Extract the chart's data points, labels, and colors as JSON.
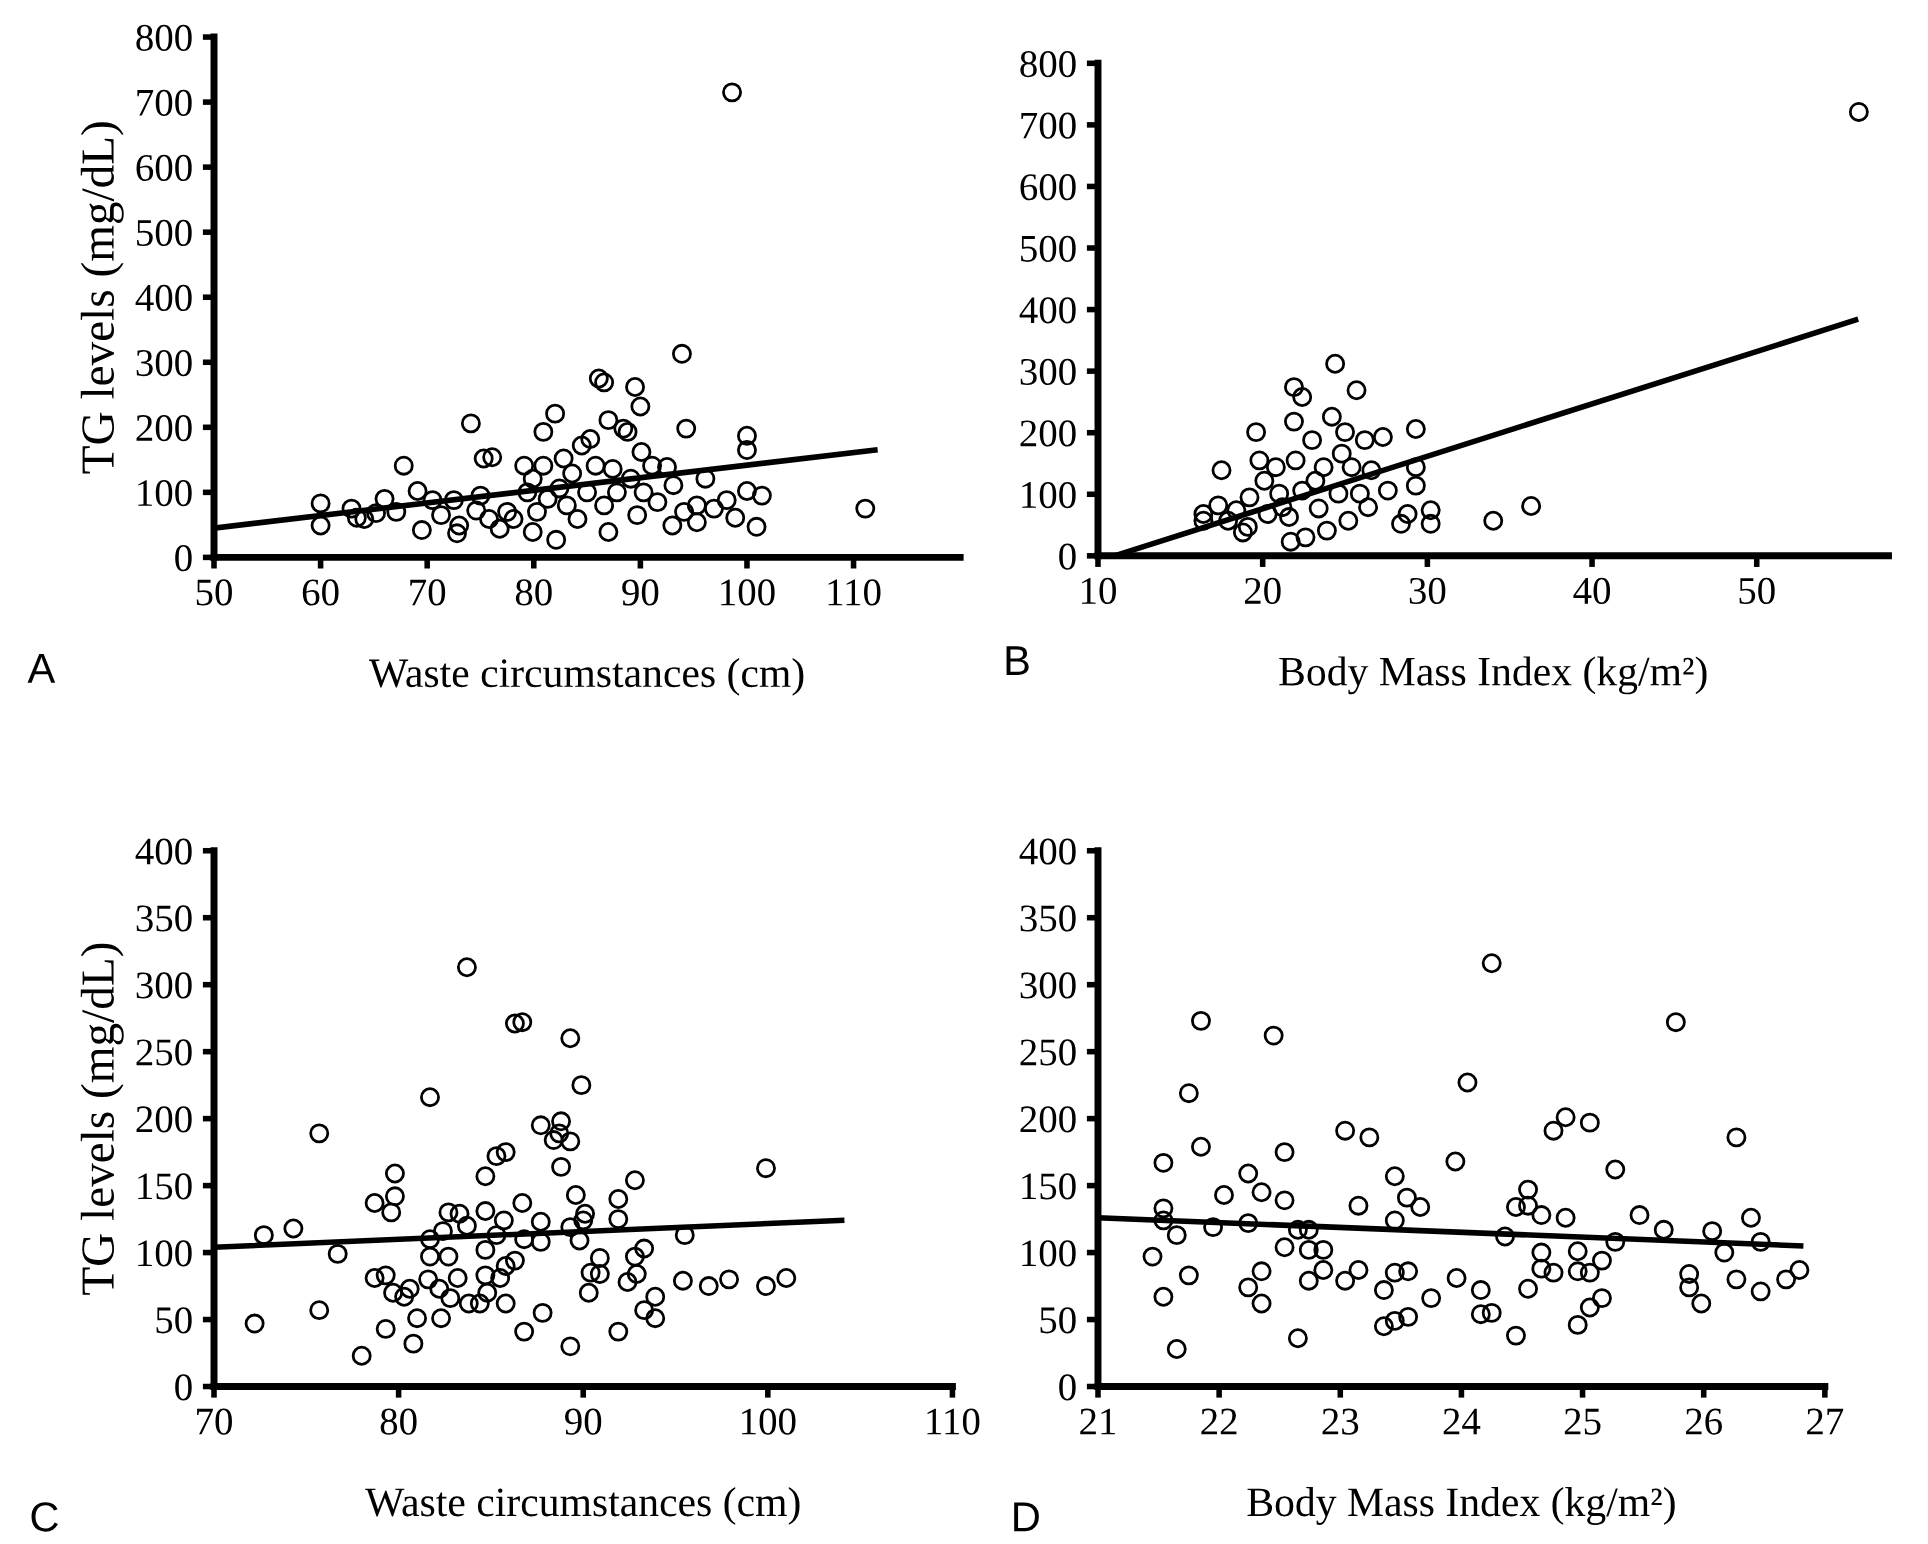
{
  "chart_data": [
    {
      "type": "scatter",
      "xlabel": "Waste circumstances (cm)",
      "ylabel": "TG levels (mg/dL)",
      "annotations": [
        "A"
      ],
      "xlim": [
        50,
        120
      ],
      "xticks": [
        50,
        60,
        70,
        80,
        90,
        100,
        110
      ],
      "ylim": [
        0,
        800
      ],
      "yticks": [
        0,
        100,
        200,
        300,
        400,
        500,
        600,
        700,
        800
      ],
      "series": [
        {
          "marker": "circle",
          "color": "#000000",
          "x": [
            60,
            60,
            62.9,
            63.4,
            64.1,
            66,
            65.2,
            67.1,
            67.8,
            69.1,
            69.5,
            70.5,
            71.3,
            72.8,
            73,
            72.5,
            74.1,
            74.6,
            75,
            75.3,
            76.1,
            75.8,
            76.8,
            77.5,
            78.1,
            79.1,
            79.4,
            79.9,
            79.9,
            80.3,
            80.9,
            80.9,
            81.3,
            82,
            82.1,
            82.4,
            82.8,
            83.1,
            83.6,
            84.1,
            84.5,
            85,
            85.3,
            85.8,
            86.1,
            86.6,
            86.6,
            87,
            87,
            87.4,
            87.8,
            88.4,
            88.8,
            89.1,
            89.5,
            89.7,
            90,
            90.1,
            90.3,
            91.1,
            91.6,
            92.5,
            93,
            93.1,
            93.9,
            94.3,
            94.1,
            95.3,
            95.3,
            96.1,
            96.9,
            98.1,
            98.6,
            98.9,
            100,
            100,
            100,
            100.9,
            101.4,
            111.1
          ],
          "values": [
            83,
            49,
            75,
            61,
            59,
            90,
            68,
            70,
            141,
            102,
            42,
            88,
            65,
            37,
            49,
            88,
            206,
            72,
            95,
            152,
            154,
            59,
            44,
            70,
            59,
            141,
            100,
            121,
            39,
            70,
            193,
            141,
            90,
            221,
            27,
            106,
            152,
            80,
            129,
            59,
            172,
            100,
            182,
            141,
            275,
            269,
            80,
            211,
            39,
            136,
            100,
            198,
            193,
            121,
            262,
            65,
            232,
            162,
            100,
            141,
            85,
            139,
            49,
            111,
            313,
            198,
            70,
            54,
            80,
            121,
            75,
            88,
            715,
            61,
            102,
            187,
            165,
            47,
            95,
            75
          ]
        },
        {
          "type": "line",
          "marker": "none",
          "color": "#000000",
          "x": [
            50,
            112
          ],
          "values": [
            45,
            165
          ]
        }
      ]
    },
    {
      "type": "scatter",
      "xlabel": "Body Mass Index (kg/m²)",
      "annotations": [
        "B"
      ],
      "xlim": [
        10,
        58
      ],
      "xticks": [
        10,
        20,
        30,
        40,
        50
      ],
      "ylim": [
        0,
        800
      ],
      "yticks": [
        0,
        100,
        200,
        300,
        400,
        500,
        600,
        700,
        800
      ],
      "series": [
        {
          "marker": "circle",
          "color": "#000000",
          "x": [
            16.4,
            16.4,
            17.3,
            17.5,
            17.9,
            18.4,
            18.8,
            19.1,
            19.2,
            19.6,
            19.8,
            20.1,
            20.3,
            20.8,
            21,
            21.2,
            21.6,
            21.7,
            21.9,
            21.9,
            22,
            22.4,
            22.4,
            22.6,
            23,
            23.2,
            23.4,
            23.7,
            23.9,
            24.2,
            24.4,
            24.6,
            24.8,
            25,
            25.2,
            25.4,
            25.7,
            25.9,
            26.2,
            26.4,
            26.6,
            27.3,
            27.6,
            28.4,
            28.8,
            29.3,
            29.3,
            29.3,
            30.2,
            30.2,
            34,
            36.3,
            56.2
          ],
          "values": [
            68,
            57,
            82,
            139,
            57,
            74,
            38,
            47,
            95,
            201,
            155,
            122,
            68,
            144,
            101,
            79,
            63,
            23,
            274,
            218,
            155,
            258,
            106,
            30,
            188,
            122,
            77,
            144,
            41,
            226,
            312,
            101,
            166,
            201,
            57,
            144,
            269,
            101,
            188,
            79,
            139,
            193,
            106,
            52,
            68,
            206,
            144,
            114,
            74,
            52,
            57,
            81,
            721
          ]
        },
        {
          "type": "line",
          "marker": "none",
          "color": "#000000",
          "x": [
            11,
            56
          ],
          "values": [
            0,
            383
          ]
        }
      ]
    },
    {
      "type": "scatter",
      "xlabel": "Waste circumstances (cm)",
      "ylabel": "TG levels (mg/dL)",
      "annotations": [
        "C"
      ],
      "xlim": [
        70,
        110
      ],
      "xticks": [
        70,
        80,
        90,
        100,
        110
      ],
      "ylim": [
        0,
        400
      ],
      "yticks": [
        0,
        50,
        100,
        150,
        200,
        250,
        300,
        350,
        400
      ],
      "series": [
        {
          "marker": "circle",
          "color": "#000000",
          "x": [
            72.2,
            72.7,
            74.3,
            75.7,
            75.7,
            76.7,
            78.0,
            78.7,
            79.3,
            79.3,
            79.6,
            79.8,
            78.7,
            79.8,
            79.7,
            80.3,
            80.6,
            80.8,
            81.0,
            81.6,
            81.7,
            81.7,
            81.7,
            82.2,
            82.3,
            82.4,
            82.7,
            82.7,
            82.8,
            83.2,
            83.3,
            83.7,
            83.7,
            83.8,
            84.4,
            84.7,
            84.7,
            84.7,
            84.7,
            84.8,
            85.3,
            85.3,
            85.5,
            85.7,
            85.8,
            85.8,
            85.8,
            86.3,
            86.3,
            86.7,
            86.7,
            86.8,
            86.8,
            87.7,
            87.7,
            87.7,
            87.8,
            88.4,
            88.8,
            88.8,
            88.7,
            89.3,
            89.3,
            89.3,
            89.3,
            89.6,
            89.8,
            89.9,
            90.0,
            90.1,
            90.3,
            90.4,
            90.9,
            90.9,
            91.9,
            91.9,
            91.9,
            92.4,
            92.8,
            92.8,
            92.9,
            93.3,
            93.3,
            93.9,
            93.9,
            95.4,
            95.5,
            96.8,
            97.9,
            99.9,
            99.9,
            101.0
          ],
          "values": [
            47,
            113,
            118,
            189,
            57,
            99,
            23,
            81,
            83,
            43,
            130,
            142,
            137,
            159,
            70,
            67,
            73,
            32,
            51,
            80,
            216,
            97,
            110,
            73,
            51,
            116,
            130,
            97,
            66,
            81,
            129,
            120,
            313,
            62,
            62,
            157,
            131,
            102,
            83,
            70,
            113,
            172,
            81,
            124,
            175,
            90,
            62,
            94,
            271,
            272,
            137,
            110,
            41,
            195,
            123,
            108,
            55,
            184,
            198,
            164,
            189,
            260,
            183,
            119,
            30,
            143,
            109,
            225,
            124,
            129,
            70,
            85,
            96,
            84,
            140,
            125,
            41,
            78,
            154,
            97,
            84,
            103,
            57,
            67,
            51,
            79,
            113,
            75,
            80,
            163,
            75,
            81
          ]
        },
        {
          "type": "line",
          "marker": "none",
          "color": "#000000",
          "x": [
            70,
            104
          ],
          "values": [
            104,
            124
          ]
        }
      ]
    },
    {
      "type": "scatter",
      "xlabel": "Body Mass Index (kg/m²)",
      "annotations": [
        "D"
      ],
      "xlim": [
        21,
        27
      ],
      "xticks": [
        21,
        22,
        23,
        24,
        25,
        26,
        27
      ],
      "ylim": [
        0,
        400
      ],
      "yticks": [
        0,
        50,
        100,
        150,
        200,
        250,
        300,
        350,
        400
      ],
      "series": [
        {
          "marker": "circle",
          "color": "#000000",
          "x": [
            21.45,
            21.54,
            21.54,
            21.54,
            21.54,
            21.65,
            21.65,
            21.75,
            21.75,
            21.85,
            21.85,
            21.95,
            22.04,
            22.24,
            22.24,
            22.24,
            22.35,
            22.35,
            22.35,
            22.45,
            22.54,
            22.54,
            22.54,
            22.65,
            22.65,
            22.74,
            22.74,
            22.74,
            22.86,
            22.86,
            23.04,
            23.04,
            23.15,
            23.15,
            23.24,
            23.36,
            23.36,
            23.45,
            23.45,
            23.45,
            23.45,
            23.55,
            23.56,
            23.56,
            23.66,
            23.75,
            23.95,
            23.96,
            24.05,
            24.16,
            24.16,
            24.25,
            24.25,
            24.36,
            24.45,
            24.45,
            24.55,
            24.55,
            24.55,
            24.66,
            24.66,
            24.66,
            24.76,
            24.76,
            24.86,
            24.86,
            24.96,
            24.96,
            24.96,
            25.06,
            25.06,
            25.06,
            25.16,
            25.16,
            25.27,
            25.27,
            25.47,
            25.67,
            25.77,
            25.88,
            25.88,
            25.98,
            26.07,
            26.17,
            26.27,
            26.27,
            26.39,
            26.47,
            26.47,
            26.68,
            26.79
          ],
          "values": [
            97,
            167,
            133,
            124,
            67,
            113,
            28,
            219,
            83,
            273,
            179,
            119,
            143,
            159,
            122,
            74,
            145,
            86,
            62,
            262,
            175,
            139,
            104,
            117,
            36,
            117,
            102,
            79,
            102,
            87,
            191,
            79,
            135,
            87,
            186,
            72,
            45,
            157,
            124,
            85,
            49,
            141,
            86,
            52,
            134,
            66,
            168,
            81,
            227,
            72,
            54,
            316,
            55,
            112,
            134,
            38,
            147,
            135,
            73,
            128,
            100,
            88,
            191,
            85,
            201,
            126,
            101,
            86,
            46,
            197,
            85,
            59,
            94,
            66,
            162,
            108,
            128,
            117,
            272,
            84,
            74,
            62,
            116,
            100,
            186,
            80,
            126,
            108,
            71,
            80,
            87
          ]
        },
        {
          "type": "line",
          "marker": "none",
          "color": "#000000",
          "x": [
            21,
            26.8
          ],
          "values": [
            126,
            105
          ]
        }
      ]
    }
  ]
}
